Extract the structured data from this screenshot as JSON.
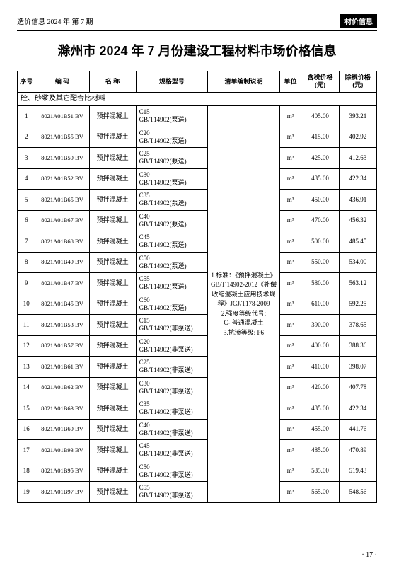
{
  "header": {
    "left": "造价信息 2024 年  第 7 期",
    "right": "材价信息"
  },
  "title": "滁州市 2024 年 7 月份建设工程材料市场价格信息",
  "columns": [
    "序号",
    "编 码",
    "名 称",
    "规格型号",
    "清单编制说明",
    "单位",
    "含税价格(元)",
    "除税价格(元)"
  ],
  "section_label": "砼、砂浆及其它配合比材料",
  "note_text": "1.标准：《预拌混凝土》GB/T 14902-2012《补偿收缩混凝土应用技术规程》JGJ/T178-2009\n2.强度等级代号:\nC- 普通混凝土\n3.抗渗等级: P6",
  "unit": "m³",
  "rows": [
    {
      "seq": "1",
      "code": "8021A01B51 BV",
      "name": "预拌混凝土",
      "spec": "C15\nGB/T14902(泵送)",
      "p1": "405.00",
      "p2": "393.21"
    },
    {
      "seq": "2",
      "code": "8021A01B55 BV",
      "name": "预拌混凝土",
      "spec": "C20\nGB/T14902(泵送)",
      "p1": "415.00",
      "p2": "402.92"
    },
    {
      "seq": "3",
      "code": "8021A01B59 BV",
      "name": "预拌混凝土",
      "spec": "C25\nGB/T14902(泵送)",
      "p1": "425.00",
      "p2": "412.63"
    },
    {
      "seq": "4",
      "code": "8021A01B52 BV",
      "name": "预拌混凝土",
      "spec": "C30\nGB/T14902(泵送)",
      "p1": "435.00",
      "p2": "422.34"
    },
    {
      "seq": "5",
      "code": "8021A01B65 BV",
      "name": "预拌混凝土",
      "spec": "C35\nGB/T14902(泵送)",
      "p1": "450.00",
      "p2": "436.91"
    },
    {
      "seq": "6",
      "code": "8021A01B67 BV",
      "name": "预拌混凝土",
      "spec": "C40\nGB/T14902(泵送)",
      "p1": "470.00",
      "p2": "456.32"
    },
    {
      "seq": "7",
      "code": "8021A01B68 BV",
      "name": "预拌混凝土",
      "spec": "C45\nGB/T14902(泵送)",
      "p1": "500.00",
      "p2": "485.45"
    },
    {
      "seq": "8",
      "code": "8021A01B49 BV",
      "name": "预拌混凝土",
      "spec": "C50\nGB/T14902(泵送)",
      "p1": "550.00",
      "p2": "534.00"
    },
    {
      "seq": "9",
      "code": "8021A01B47 BV",
      "name": "预拌混凝土",
      "spec": "C55\nGB/T14902(泵送)",
      "p1": "580.00",
      "p2": "563.12"
    },
    {
      "seq": "10",
      "code": "8021A01B45 BV",
      "name": "预拌混凝土",
      "spec": "C60\nGB/T14902(泵送)",
      "p1": "610.00",
      "p2": "592.25"
    },
    {
      "seq": "11",
      "code": "8021A01B53 BV",
      "name": "预拌混凝土",
      "spec": "C15\nGB/T14902(非泵送)",
      "p1": "390.00",
      "p2": "378.65"
    },
    {
      "seq": "12",
      "code": "8021A01B57 BV",
      "name": "预拌混凝土",
      "spec": "C20\nGB/T14902(非泵送)",
      "p1": "400.00",
      "p2": "388.36"
    },
    {
      "seq": "13",
      "code": "8021A01B61 BV",
      "name": "预拌混凝土",
      "spec": "C25\nGB/T14902(非泵送)",
      "p1": "410.00",
      "p2": "398.07"
    },
    {
      "seq": "14",
      "code": "8021A01B62 BV",
      "name": "预拌混凝土",
      "spec": "C30\nGB/T14902(非泵送)",
      "p1": "420.00",
      "p2": "407.78"
    },
    {
      "seq": "15",
      "code": "8021A01B63 BV",
      "name": "预拌混凝土",
      "spec": "C35\nGB/T14902(非泵送)",
      "p1": "435.00",
      "p2": "422.34"
    },
    {
      "seq": "16",
      "code": "8021A01B69 BV",
      "name": "预拌混凝土",
      "spec": "C40\nGB/T14902(非泵送)",
      "p1": "455.00",
      "p2": "441.76"
    },
    {
      "seq": "17",
      "code": "8021A01B93 BV",
      "name": "预拌混凝土",
      "spec": "C45\nGB/T14902(非泵送)",
      "p1": "485.00",
      "p2": "470.89"
    },
    {
      "seq": "18",
      "code": "8021A01B95 BV",
      "name": "预拌混凝土",
      "spec": "C50\nGB/T14902(非泵送)",
      "p1": "535.00",
      "p2": "519.43"
    },
    {
      "seq": "19",
      "code": "8021A01B97 BV",
      "name": "预拌混凝土",
      "spec": "C55\nGB/T14902(非泵送)",
      "p1": "565.00",
      "p2": "548.56"
    }
  ],
  "page_number": "· 17 ·"
}
